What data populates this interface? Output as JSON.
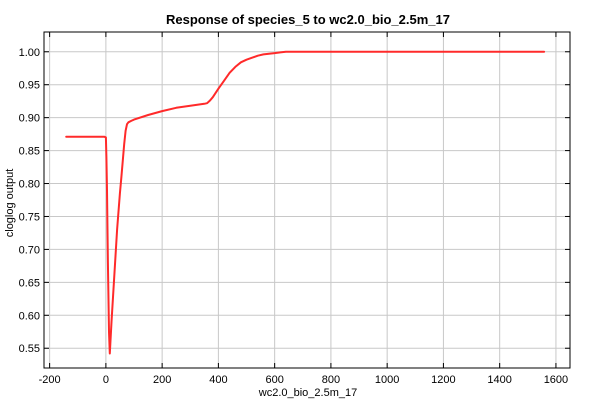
{
  "chart_data": {
    "type": "line",
    "title": "Response of species_5 to wc2.0_bio_2.5m_17",
    "xlabel": "wc2.0_bio_2.5m_17",
    "ylabel": "cloglog output",
    "xlim": [
      -220,
      1650
    ],
    "ylim": [
      0.52,
      1.03
    ],
    "xticks": [
      "-200",
      "0",
      "200",
      "400",
      "600",
      "800",
      "1000",
      "1200",
      "1400",
      "1600"
    ],
    "yticks": [
      "0.55",
      "0.60",
      "0.65",
      "0.70",
      "0.75",
      "0.80",
      "0.85",
      "0.90",
      "0.95",
      "1.00"
    ],
    "grid": true,
    "series": [
      {
        "color": "#ff2a2a",
        "x": [
          -141,
          -110,
          -50,
          -5,
          0,
          2,
          4,
          7,
          11,
          14,
          20,
          30,
          40,
          50,
          55,
          60,
          65,
          70,
          75,
          80,
          90,
          100,
          150,
          200,
          250,
          300,
          350,
          360,
          370,
          380,
          400,
          420,
          440,
          460,
          480,
          500,
          520,
          540,
          560,
          580,
          600,
          620,
          640,
          700,
          800,
          1000,
          1200,
          1400,
          1558
        ],
        "y": [
          0.871,
          0.871,
          0.871,
          0.871,
          0.87,
          0.84,
          0.79,
          0.68,
          0.575,
          0.542,
          0.59,
          0.66,
          0.73,
          0.785,
          0.81,
          0.835,
          0.86,
          0.88,
          0.89,
          0.893,
          0.895,
          0.897,
          0.904,
          0.91,
          0.915,
          0.918,
          0.921,
          0.922,
          0.926,
          0.931,
          0.944,
          0.956,
          0.968,
          0.977,
          0.984,
          0.988,
          0.991,
          0.994,
          0.996,
          0.997,
          0.998,
          0.999,
          1.0,
          1.0,
          1.0,
          1.0,
          1.0,
          1.0,
          1.0
        ]
      }
    ]
  }
}
